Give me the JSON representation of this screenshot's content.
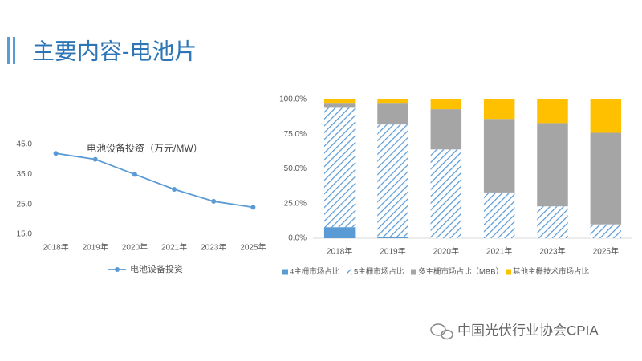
{
  "title": "主要内容-电池片",
  "watermark": "中国光伏行业协会CPIA",
  "chart_data": [
    {
      "type": "line",
      "title": "电池设备投资（万元/MW）",
      "categories": [
        "2018年",
        "2019年",
        "2020年",
        "2021年",
        "2023年",
        "2025年"
      ],
      "series": [
        {
          "name": "电池设备投资",
          "color": "#5b9bd5",
          "values": [
            42,
            40,
            35,
            30,
            26,
            24
          ]
        }
      ],
      "ylim": [
        15,
        45
      ],
      "yticks": [
        {
          "value": 15,
          "label": "15.0"
        },
        {
          "value": 25,
          "label": "25.0"
        },
        {
          "value": 35,
          "label": "35.0"
        },
        {
          "value": 45,
          "label": "45.0"
        }
      ],
      "legend": "bottom"
    },
    {
      "type": "stacked-bar",
      "categories": [
        "2018年",
        "2019年",
        "2020年",
        "2021年",
        "2023年",
        "2025年"
      ],
      "series": [
        {
          "name": "4主栅市场占比",
          "color": "#5b9bd5",
          "values": [
            8,
            1,
            0,
            0,
            0,
            0
          ]
        },
        {
          "name": "5主栅市场占比",
          "color": "#5b9bd5",
          "hatch": true,
          "values": [
            86,
            81,
            64,
            33,
            23,
            10
          ]
        },
        {
          "name": "多主栅市场占比（MBB）",
          "color": "#a5a5a5",
          "values": [
            3,
            15,
            29,
            53,
            60,
            66
          ]
        },
        {
          "name": "其他主栅技术市场占比",
          "color": "#ffc000",
          "values": [
            3,
            3,
            7,
            14,
            17,
            24
          ]
        }
      ],
      "ylim": [
        0,
        100
      ],
      "yticks": [
        {
          "value": 0,
          "label": "0.0%"
        },
        {
          "value": 25,
          "label": "25.0%"
        },
        {
          "value": 50,
          "label": "50.0%"
        },
        {
          "value": 75,
          "label": "75.0%"
        },
        {
          "value": 100,
          "label": "100.0%"
        }
      ],
      "legend": "bottom"
    }
  ]
}
